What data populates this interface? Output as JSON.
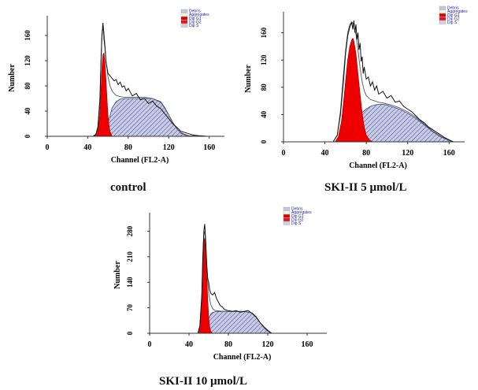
{
  "colors": {
    "fit_fill": "#ee0000",
    "s_phase_fill": "#c8cbe6",
    "s_phase_hatch": "#3f4a8a",
    "trace": "#111111",
    "legend_text": "#1a1aa8",
    "legend_swatches": [
      "#c4c9ea",
      "#e9f7e6",
      "#dd0000",
      "#ee1111",
      "#ccd0ee"
    ]
  },
  "chart_data": [
    {
      "type": "area",
      "caption": "control",
      "xlabel": "Channel (FL2-A)",
      "ylabel": "Number",
      "xlim": [
        0,
        175
      ],
      "ylim": [
        0,
        185
      ],
      "xticks": [
        0,
        40,
        80,
        120,
        160
      ],
      "yticks": [
        0,
        40,
        80,
        120,
        160
      ],
      "legend": [
        "Debris",
        "Aggregates",
        "Dip G1",
        "Dip G2",
        "Dip S"
      ],
      "legend_position": "top-right",
      "series": {
        "data_trace": {
          "x": [
            45,
            48,
            50,
            52,
            53,
            54,
            55,
            55.5,
            56,
            57,
            58,
            60,
            62,
            64,
            66,
            68,
            70,
            72,
            74,
            76,
            78,
            80,
            84,
            88,
            92,
            96,
            100,
            104,
            108,
            112,
            116,
            120,
            124,
            128,
            132,
            136,
            140,
            144,
            150,
            158
          ],
          "y": [
            0,
            3,
            15,
            60,
            115,
            160,
            180,
            170,
            155,
            140,
            118,
            100,
            96,
            92,
            88,
            90,
            82,
            86,
            78,
            80,
            72,
            76,
            64,
            68,
            58,
            60,
            52,
            56,
            48,
            44,
            36,
            28,
            20,
            14,
            8,
            6,
            4,
            2,
            1,
            0
          ]
        },
        "envelope": {
          "x": [
            45,
            48,
            50,
            52,
            53,
            54,
            55,
            56,
            57,
            58,
            60,
            62,
            64,
            66,
            68,
            72,
            76,
            80,
            84,
            88,
            96,
            104,
            112,
            116,
            120,
            124,
            128,
            132,
            136,
            140,
            150
          ],
          "y": [
            0,
            3,
            12,
            50,
            110,
            158,
            172,
            165,
            145,
            120,
            95,
            80,
            72,
            68,
            65,
            63,
            62,
            62,
            62,
            62,
            62,
            60,
            54,
            45,
            34,
            22,
            12,
            6,
            3,
            1,
            0
          ]
        },
        "dip_g1": {
          "x": [
            46,
            48,
            50,
            52,
            53,
            54,
            55,
            56,
            57,
            58,
            59,
            60,
            61,
            62,
            64
          ],
          "y": [
            0,
            3,
            10,
            35,
            70,
            110,
            130,
            132,
            118,
            90,
            60,
            35,
            18,
            8,
            0
          ]
        },
        "dip_s": {
          "x": [
            56,
            60,
            64,
            68,
            72,
            76,
            80,
            84,
            88,
            96,
            104,
            112,
            116,
            120,
            124,
            128,
            132,
            136,
            140
          ],
          "y": [
            0,
            20,
            45,
            55,
            59,
            60,
            60,
            60,
            60,
            60,
            60,
            55,
            46,
            34,
            22,
            12,
            5,
            2,
            0
          ]
        }
      }
    },
    {
      "type": "area",
      "caption": "SKI-II    5 µmol/L",
      "xlabel": "Channel (FL2-A)",
      "ylabel": "Number",
      "xlim": [
        0,
        175
      ],
      "ylim": [
        0,
        185
      ],
      "xticks": [
        0,
        40,
        80,
        120,
        160
      ],
      "yticks": [
        0,
        40,
        80,
        120,
        160
      ],
      "legend": [
        "Debris",
        "Aggregates",
        "Dip G1",
        "Dip G2",
        "Dip S"
      ],
      "legend_position": "top-right",
      "series": {
        "data_trace": {
          "x": [
            48,
            52,
            55,
            58,
            60,
            62,
            64,
            66,
            67,
            68,
            69,
            70,
            71,
            72,
            73,
            74,
            75,
            76,
            77,
            78,
            80,
            82,
            84,
            86,
            88,
            90,
            92,
            96,
            100,
            104,
            108,
            112,
            116,
            120,
            124,
            128,
            132,
            136,
            140,
            144,
            148,
            152,
            156,
            160,
            164
          ],
          "y": [
            0,
            10,
            40,
            90,
            130,
            155,
            168,
            175,
            165,
            178,
            160,
            172,
            150,
            160,
            135,
            145,
            118,
            125,
            100,
            110,
            92,
            95,
            82,
            88,
            76,
            82,
            70,
            74,
            64,
            68,
            58,
            60,
            52,
            48,
            44,
            38,
            32,
            28,
            22,
            18,
            14,
            10,
            6,
            3,
            0
          ]
        },
        "envelope": {
          "x": [
            48,
            52,
            55,
            58,
            60,
            62,
            64,
            66,
            68,
            70,
            72,
            74,
            76,
            78,
            80,
            84,
            88,
            92,
            96,
            104,
            112,
            120,
            128,
            136,
            144,
            152,
            160,
            164
          ],
          "y": [
            0,
            10,
            45,
            100,
            135,
            160,
            172,
            176,
            172,
            158,
            135,
            108,
            88,
            75,
            68,
            62,
            60,
            58,
            57,
            54,
            50,
            44,
            36,
            26,
            16,
            8,
            2,
            0
          ]
        },
        "dip_g1": {
          "x": [
            50,
            53,
            56,
            58,
            60,
            62,
            64,
            66,
            67,
            68,
            70,
            72,
            74,
            76,
            78,
            80,
            83,
            86
          ],
          "y": [
            0,
            8,
            30,
            58,
            90,
            120,
            140,
            150,
            152,
            148,
            130,
            100,
            70,
            42,
            22,
            10,
            3,
            0
          ]
        },
        "dip_s": {
          "x": [
            58,
            64,
            70,
            76,
            80,
            84,
            88,
            92,
            96,
            100,
            104,
            112,
            120,
            128,
            136,
            144,
            152,
            160,
            164
          ],
          "y": [
            0,
            12,
            30,
            43,
            48,
            52,
            54,
            55,
            55,
            54,
            52,
            48,
            42,
            34,
            25,
            15,
            7,
            2,
            0
          ]
        }
      }
    },
    {
      "type": "area",
      "caption": "SKI-II 10 µmol/L",
      "xlabel": "Channel (FL2-A)",
      "ylabel": "Number",
      "xlim": [
        0,
        180
      ],
      "ylim": [
        0,
        320
      ],
      "xticks": [
        0,
        40,
        80,
        120,
        160
      ],
      "yticks": [
        0,
        70,
        140,
        210,
        280
      ],
      "legend": [
        "Debris",
        "Aggregates",
        "Dip G1",
        "Dip G2",
        "Dip S"
      ],
      "legend_position": "top-right",
      "series": {
        "data_trace": {
          "x": [
            49,
            51,
            53,
            54,
            55,
            56,
            57,
            58,
            59,
            60,
            61,
            62,
            64,
            66,
            68,
            70,
            72,
            74,
            76,
            80,
            84,
            88,
            92,
            96,
            100,
            104,
            108,
            112,
            116,
            120,
            124
          ],
          "y": [
            0,
            20,
            100,
            200,
            280,
            300,
            250,
            190,
            150,
            140,
            120,
            110,
            105,
            112,
            95,
            85,
            75,
            72,
            65,
            62,
            60,
            62,
            58,
            60,
            62,
            55,
            45,
            30,
            18,
            8,
            0
          ]
        },
        "envelope": {
          "x": [
            49,
            51,
            53,
            54,
            55,
            56,
            57,
            58,
            59,
            60,
            62,
            64,
            66,
            68,
            72,
            76,
            80,
            88,
            96,
            104,
            108,
            112,
            116,
            120,
            124
          ],
          "y": [
            0,
            20,
            110,
            210,
            270,
            280,
            245,
            185,
            140,
            110,
            80,
            68,
            63,
            62,
            61,
            60,
            60,
            60,
            60,
            56,
            46,
            30,
            16,
            6,
            0
          ]
        },
        "dip_g1": {
          "x": [
            50,
            52,
            53,
            54,
            55,
            56,
            57,
            58,
            59,
            60,
            61,
            62,
            64
          ],
          "y": [
            0,
            40,
            110,
            190,
            250,
            262,
            225,
            160,
            95,
            45,
            18,
            6,
            0
          ]
        },
        "dip_s": {
          "x": [
            56,
            58,
            60,
            62,
            64,
            68,
            72,
            80,
            88,
            96,
            104,
            108,
            112,
            116,
            120,
            124
          ],
          "y": [
            0,
            20,
            40,
            52,
            57,
            60,
            60,
            60,
            60,
            60,
            56,
            46,
            30,
            16,
            6,
            0
          ]
        }
      }
    }
  ]
}
